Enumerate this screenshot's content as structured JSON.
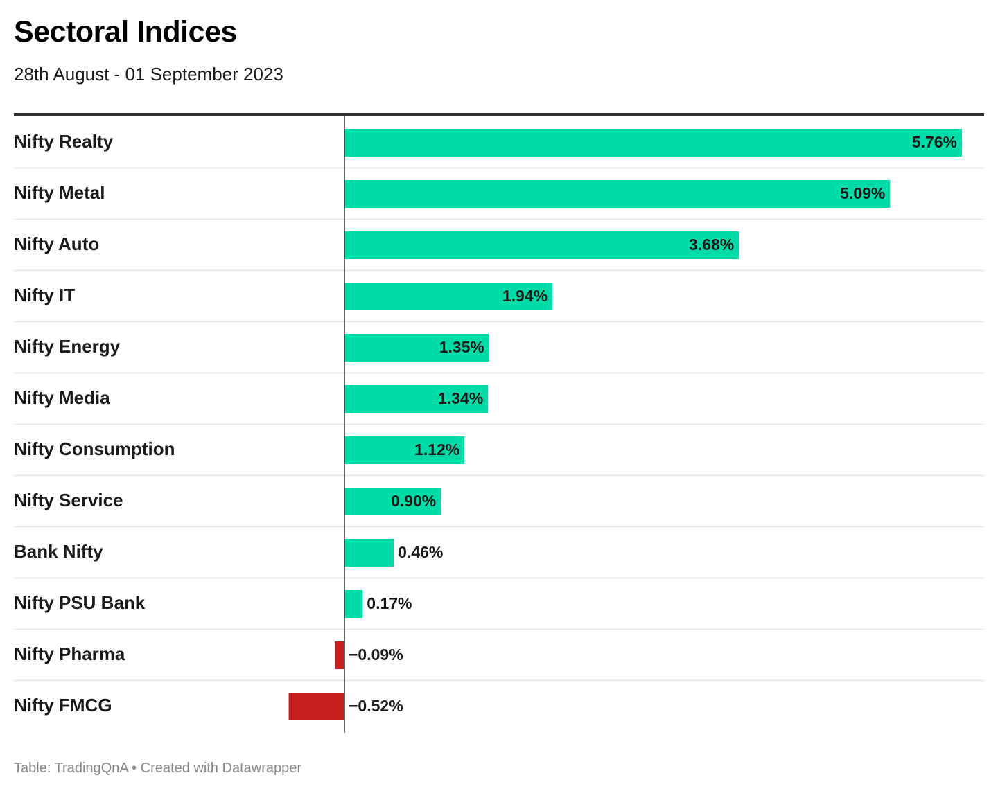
{
  "title": "Sectoral Indices",
  "subtitle": "28th August - 01 September 2023",
  "footer": "Table: TradingQnA • Created with Datawrapper",
  "colors": {
    "positive": "#00dca7",
    "negative": "#c71e1d",
    "rule": "#333333",
    "row_divider": "#e5e5e5",
    "axis": "#333333"
  },
  "chart_data": {
    "type": "bar",
    "orientation": "horizontal",
    "categories": [
      "Nifty Realty",
      "Nifty Metal",
      "Nifty Auto",
      "Nifty IT",
      "Nifty Energy",
      "Nifty Media",
      "Nifty Consumption",
      "Nifty Service",
      "Bank Nifty",
      "Nifty PSU Bank",
      "Nifty Pharma",
      "Nifty FMCG"
    ],
    "values": [
      5.76,
      5.09,
      3.68,
      1.94,
      1.35,
      1.34,
      1.12,
      0.9,
      0.46,
      0.17,
      -0.09,
      -0.52
    ],
    "value_labels": [
      "5.76%",
      "5.09%",
      "3.68%",
      "1.94%",
      "1.35%",
      "1.34%",
      "1.12%",
      "0.90%",
      "0.46%",
      "0.17%",
      "−0.09%",
      "−0.52%"
    ],
    "xlim": [
      -0.52,
      5.76
    ],
    "unit": "%"
  }
}
